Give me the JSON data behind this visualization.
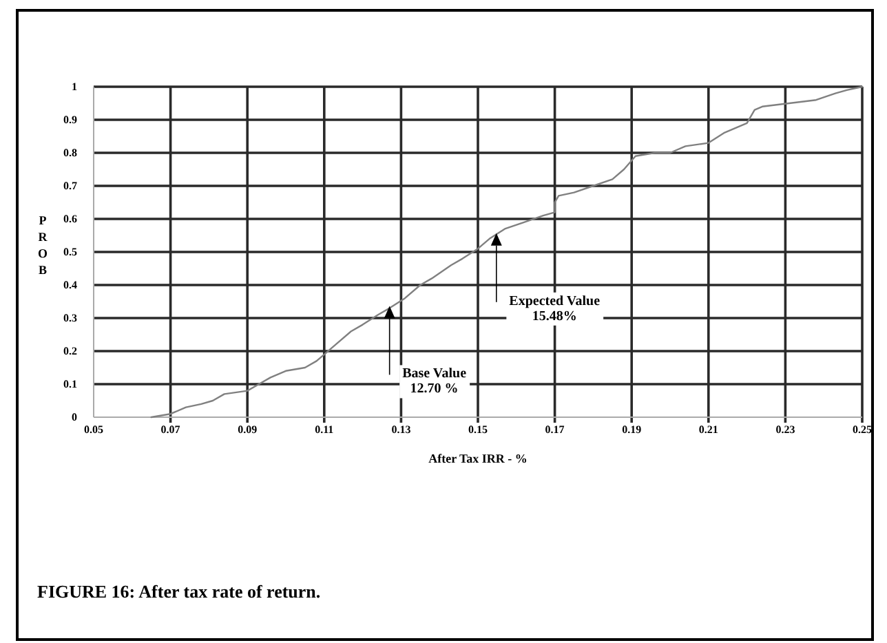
{
  "chart_data": {
    "type": "line",
    "xlabel": "After Tax IRR - %",
    "ylabel": "PROB",
    "x": [
      0.065,
      0.07,
      0.074,
      0.078,
      0.081,
      0.084,
      0.09,
      0.093,
      0.096,
      0.1,
      0.105,
      0.108,
      0.11,
      0.113,
      0.117,
      0.12,
      0.124,
      0.127,
      0.131,
      0.135,
      0.138,
      0.143,
      0.146,
      0.15,
      0.153,
      0.157,
      0.162,
      0.167,
      0.17,
      0.17,
      0.171,
      0.175,
      0.18,
      0.185,
      0.188,
      0.191,
      0.196,
      0.2,
      0.204,
      0.21,
      0.214,
      0.22,
      0.222,
      0.224,
      0.231,
      0.238,
      0.243,
      0.246,
      0.25
    ],
    "values": [
      0,
      0.01,
      0.03,
      0.04,
      0.05,
      0.07,
      0.08,
      0.1,
      0.12,
      0.14,
      0.15,
      0.17,
      0.19,
      0.22,
      0.26,
      0.28,
      0.31,
      0.33,
      0.36,
      0.4,
      0.42,
      0.46,
      0.48,
      0.51,
      0.54,
      0.57,
      0.59,
      0.61,
      0.62,
      0.65,
      0.67,
      0.68,
      0.7,
      0.72,
      0.75,
      0.79,
      0.8,
      0.8,
      0.82,
      0.83,
      0.86,
      0.89,
      0.93,
      0.94,
      0.95,
      0.96,
      0.98,
      0.99,
      1
    ],
    "color": "#808080",
    "xlim": [
      0.05,
      0.25
    ],
    "xticks": [
      0.05,
      0.07,
      0.09,
      0.11,
      0.13,
      0.15,
      0.17,
      0.19,
      0.21,
      0.23,
      0.25
    ],
    "ylim": [
      0,
      1
    ],
    "yticks": [
      0,
      0.1,
      0.2,
      0.3,
      0.4,
      0.5,
      0.6,
      0.7,
      0.8,
      0.9,
      1
    ],
    "grid": true,
    "annotations": [
      {
        "text": "Base Value\n12.70 %",
        "x": 0.127,
        "y": 0.32
      },
      {
        "text": "Expected Value\n15.48%",
        "x": 0.1548,
        "y": 0.54
      },
      "FIGURE 16: After tax rate of return."
    ]
  }
}
